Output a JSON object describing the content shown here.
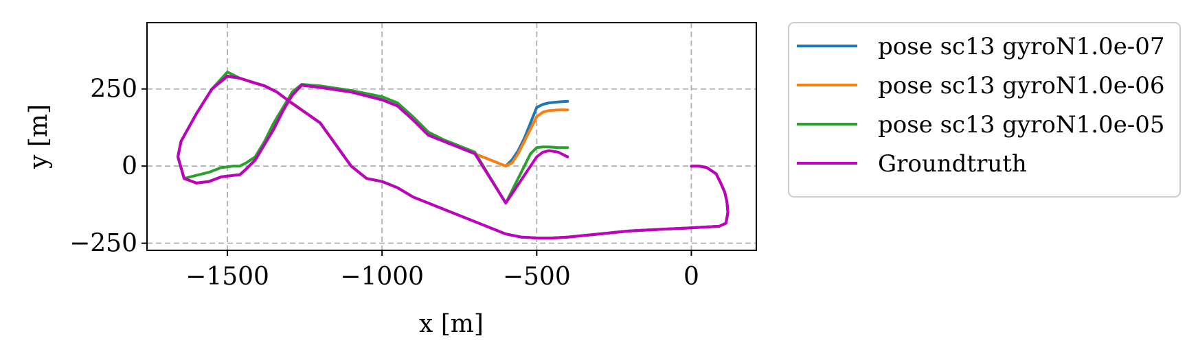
{
  "chart_data": {
    "type": "line",
    "title": "",
    "xlabel": "x [m]",
    "ylabel": "y [m]",
    "xlim": [
      -1760,
      210
    ],
    "ylim": [
      -273,
      465
    ],
    "xticks": [
      -1500,
      -1000,
      -500,
      0
    ],
    "xtick_labels": [
      "−1500",
      "−1000",
      "−500",
      "0"
    ],
    "yticks": [
      -250,
      0,
      250
    ],
    "ytick_labels": [
      "−250",
      "0",
      "250"
    ],
    "grid": true,
    "legend_position": "outside-top-right",
    "series": [
      {
        "name": "pose sc13 gyroN1.0e-07",
        "color": "#1f77b4",
        "x": [
          0,
          25,
          50,
          80,
          95,
          108,
          115,
          118,
          112,
          90,
          0,
          -100,
          -200,
          -300,
          -400,
          -450,
          -500,
          -550,
          -600,
          -650,
          -700,
          -750,
          -800,
          -850,
          -900,
          -950,
          -1000,
          -1050,
          -1100,
          -1200,
          -1300,
          -1340,
          -1380,
          -1420,
          -1460,
          -1500,
          -1550,
          -1600,
          -1650,
          -1660,
          -1640,
          -1600,
          -1560,
          -1520,
          -1480,
          -1460,
          -1440,
          -1410,
          -1380,
          -1350,
          -1320,
          -1290,
          -1260,
          -1200,
          -1100,
          -1000,
          -950,
          -900,
          -850,
          -800,
          -700,
          -600,
          -580,
          -560,
          -540,
          -520,
          -500,
          -480,
          -460,
          -430,
          -400
        ],
        "y": [
          0,
          0,
          -5,
          -25,
          -55,
          -85,
          -115,
          -150,
          -185,
          -195,
          -200,
          -205,
          -210,
          -220,
          -230,
          -233,
          -233,
          -230,
          -220,
          -200,
          -180,
          -160,
          -140,
          -120,
          -100,
          -70,
          -50,
          -40,
          0,
          140,
          210,
          240,
          260,
          272,
          285,
          290,
          250,
          170,
          80,
          30,
          -40,
          -55,
          -50,
          -35,
          -30,
          -28,
          -10,
          20,
          70,
          120,
          180,
          230,
          262,
          255,
          240,
          215,
          195,
          150,
          100,
          80,
          40,
          0,
          20,
          50,
          90,
          140,
          190,
          200,
          205,
          208,
          210
        ]
      },
      {
        "name": "pose sc13 gyroN1.0e-06",
        "color": "#ff7f0e",
        "x": [
          0,
          25,
          50,
          80,
          95,
          108,
          115,
          118,
          112,
          90,
          0,
          -100,
          -200,
          -300,
          -400,
          -450,
          -500,
          -550,
          -600,
          -650,
          -700,
          -750,
          -800,
          -850,
          -900,
          -950,
          -1000,
          -1050,
          -1100,
          -1200,
          -1300,
          -1340,
          -1380,
          -1420,
          -1460,
          -1500,
          -1550,
          -1600,
          -1650,
          -1660,
          -1640,
          -1600,
          -1560,
          -1520,
          -1480,
          -1460,
          -1440,
          -1410,
          -1380,
          -1350,
          -1320,
          -1290,
          -1260,
          -1200,
          -1100,
          -1000,
          -950,
          -900,
          -850,
          -800,
          -700,
          -600,
          -580,
          -560,
          -540,
          -520,
          -500,
          -480,
          -460,
          -430,
          -400
        ],
        "y": [
          0,
          0,
          -5,
          -25,
          -55,
          -85,
          -115,
          -150,
          -185,
          -195,
          -200,
          -205,
          -210,
          -220,
          -230,
          -233,
          -233,
          -230,
          -220,
          -200,
          -180,
          -160,
          -140,
          -120,
          -100,
          -70,
          -50,
          -40,
          0,
          140,
          210,
          240,
          260,
          272,
          285,
          292,
          250,
          170,
          80,
          30,
          -40,
          -55,
          -50,
          -35,
          -30,
          -28,
          -10,
          20,
          70,
          120,
          180,
          230,
          262,
          255,
          240,
          215,
          195,
          150,
          100,
          80,
          40,
          0,
          10,
          40,
          80,
          120,
          160,
          175,
          180,
          182,
          182
        ]
      },
      {
        "name": "pose sc13 gyroN1.0e-05",
        "color": "#2ca02c",
        "x": [
          0,
          25,
          50,
          80,
          95,
          108,
          115,
          118,
          112,
          90,
          0,
          -100,
          -200,
          -300,
          -400,
          -450,
          -500,
          -550,
          -600,
          -650,
          -700,
          -750,
          -800,
          -850,
          -900,
          -950,
          -1000,
          -1050,
          -1100,
          -1200,
          -1300,
          -1340,
          -1380,
          -1420,
          -1460,
          -1500,
          -1550,
          -1600,
          -1650,
          -1660,
          -1640,
          -1600,
          -1560,
          -1520,
          -1480,
          -1460,
          -1440,
          -1410,
          -1380,
          -1350,
          -1320,
          -1290,
          -1260,
          -1200,
          -1100,
          -1000,
          -950,
          -900,
          -850,
          -800,
          -700,
          -600,
          -580,
          -560,
          -540,
          -520,
          -500,
          -480,
          -460,
          -430,
          -400
        ],
        "y": [
          0,
          0,
          -5,
          -25,
          -55,
          -85,
          -115,
          -150,
          -185,
          -195,
          -200,
          -205,
          -210,
          -220,
          -230,
          -233,
          -233,
          -230,
          -220,
          -200,
          -180,
          -160,
          -140,
          -120,
          -100,
          -70,
          -50,
          -40,
          0,
          140,
          210,
          240,
          260,
          272,
          285,
          305,
          250,
          170,
          80,
          30,
          -40,
          -30,
          -20,
          -5,
          0,
          0,
          10,
          30,
          80,
          140,
          190,
          240,
          265,
          260,
          245,
          225,
          205,
          160,
          110,
          85,
          45,
          -120,
          -80,
          -40,
          0,
          40,
          60,
          62,
          62,
          60,
          60
        ]
      },
      {
        "name": "Groundtruth",
        "color": "#c000c0",
        "x": [
          0,
          25,
          50,
          80,
          95,
          108,
          115,
          118,
          112,
          90,
          0,
          -100,
          -200,
          -300,
          -400,
          -450,
          -500,
          -550,
          -600,
          -650,
          -700,
          -750,
          -800,
          -850,
          -900,
          -950,
          -1000,
          -1050,
          -1100,
          -1200,
          -1300,
          -1340,
          -1380,
          -1420,
          -1460,
          -1500,
          -1550,
          -1600,
          -1650,
          -1660,
          -1640,
          -1600,
          -1560,
          -1520,
          -1480,
          -1460,
          -1440,
          -1410,
          -1380,
          -1350,
          -1320,
          -1290,
          -1260,
          -1200,
          -1100,
          -1000,
          -950,
          -900,
          -850,
          -800,
          -700,
          -600,
          -580,
          -560,
          -540,
          -520,
          -500,
          -480,
          -460,
          -430,
          -400
        ],
        "y": [
          0,
          0,
          -5,
          -25,
          -55,
          -85,
          -115,
          -150,
          -185,
          -195,
          -200,
          -205,
          -210,
          -220,
          -230,
          -233,
          -233,
          -230,
          -220,
          -200,
          -180,
          -160,
          -140,
          -120,
          -100,
          -70,
          -50,
          -40,
          0,
          140,
          210,
          240,
          260,
          272,
          285,
          292,
          250,
          170,
          80,
          30,
          -40,
          -55,
          -50,
          -35,
          -30,
          -28,
          -10,
          20,
          70,
          120,
          180,
          230,
          262,
          255,
          240,
          215,
          195,
          150,
          100,
          80,
          40,
          -120,
          -90,
          -60,
          -30,
          0,
          30,
          45,
          50,
          45,
          30
        ]
      }
    ]
  }
}
